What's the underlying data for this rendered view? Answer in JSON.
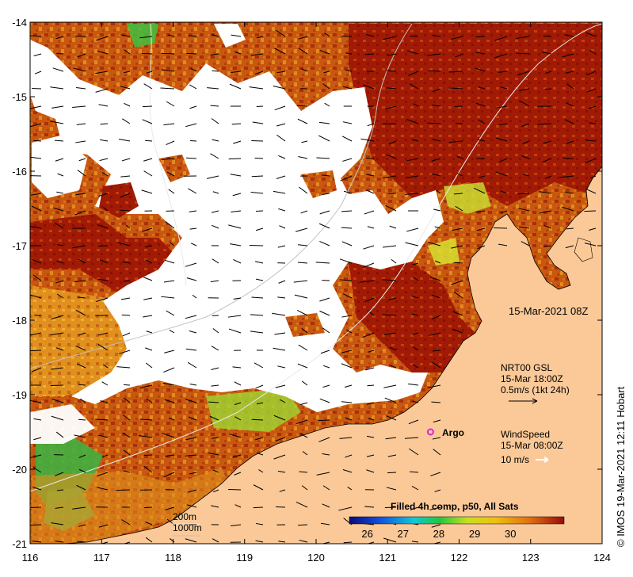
{
  "map": {
    "x_ticks": [
      "116",
      "117",
      "118",
      "119",
      "120",
      "121",
      "122",
      "123",
      "124"
    ],
    "y_ticks": [
      "-14",
      "-15",
      "-16",
      "-17",
      "-18",
      "-19",
      "-20",
      "-21"
    ],
    "lon_range": [
      116,
      124
    ],
    "lat_range": [
      -21,
      -14
    ],
    "date_stamp": "15-Mar-2021 08Z"
  },
  "currents_legend": {
    "line1": "NRT00 GSL",
    "line2": "15-Mar 18:00Z",
    "line3": "0.5m/s (1kt 24h)"
  },
  "wind_legend": {
    "line1": "WindSpeed",
    "line2": "15-Mar 08:00Z",
    "line3": "10 m/s"
  },
  "argo": {
    "label": "Argo",
    "lon": 121.6,
    "lat": -19.5,
    "color": "#e020e0"
  },
  "bathy_legend": {
    "label_200": "200m",
    "label_1000": "1000m"
  },
  "colorbar": {
    "title": "Filled 4h comp, p50, All Sats",
    "ticks": [
      "26",
      "27",
      "28",
      "29",
      "30"
    ],
    "stops": [
      "#0a0a7a",
      "#1050e0",
      "#10c8d8",
      "#20c840",
      "#c8e020",
      "#f0c010",
      "#e07010",
      "#9a0a0a"
    ]
  },
  "credit": "© IMOS 19-Mar-2021 12:11 Hobart",
  "colors": {
    "land": "#fbc998",
    "sst_warm": "#c8580f",
    "sst_hot": "#a01a05",
    "sst_mid": "#e08a20",
    "sst_cool": "#50c040",
    "cloud": "#ffffff"
  }
}
